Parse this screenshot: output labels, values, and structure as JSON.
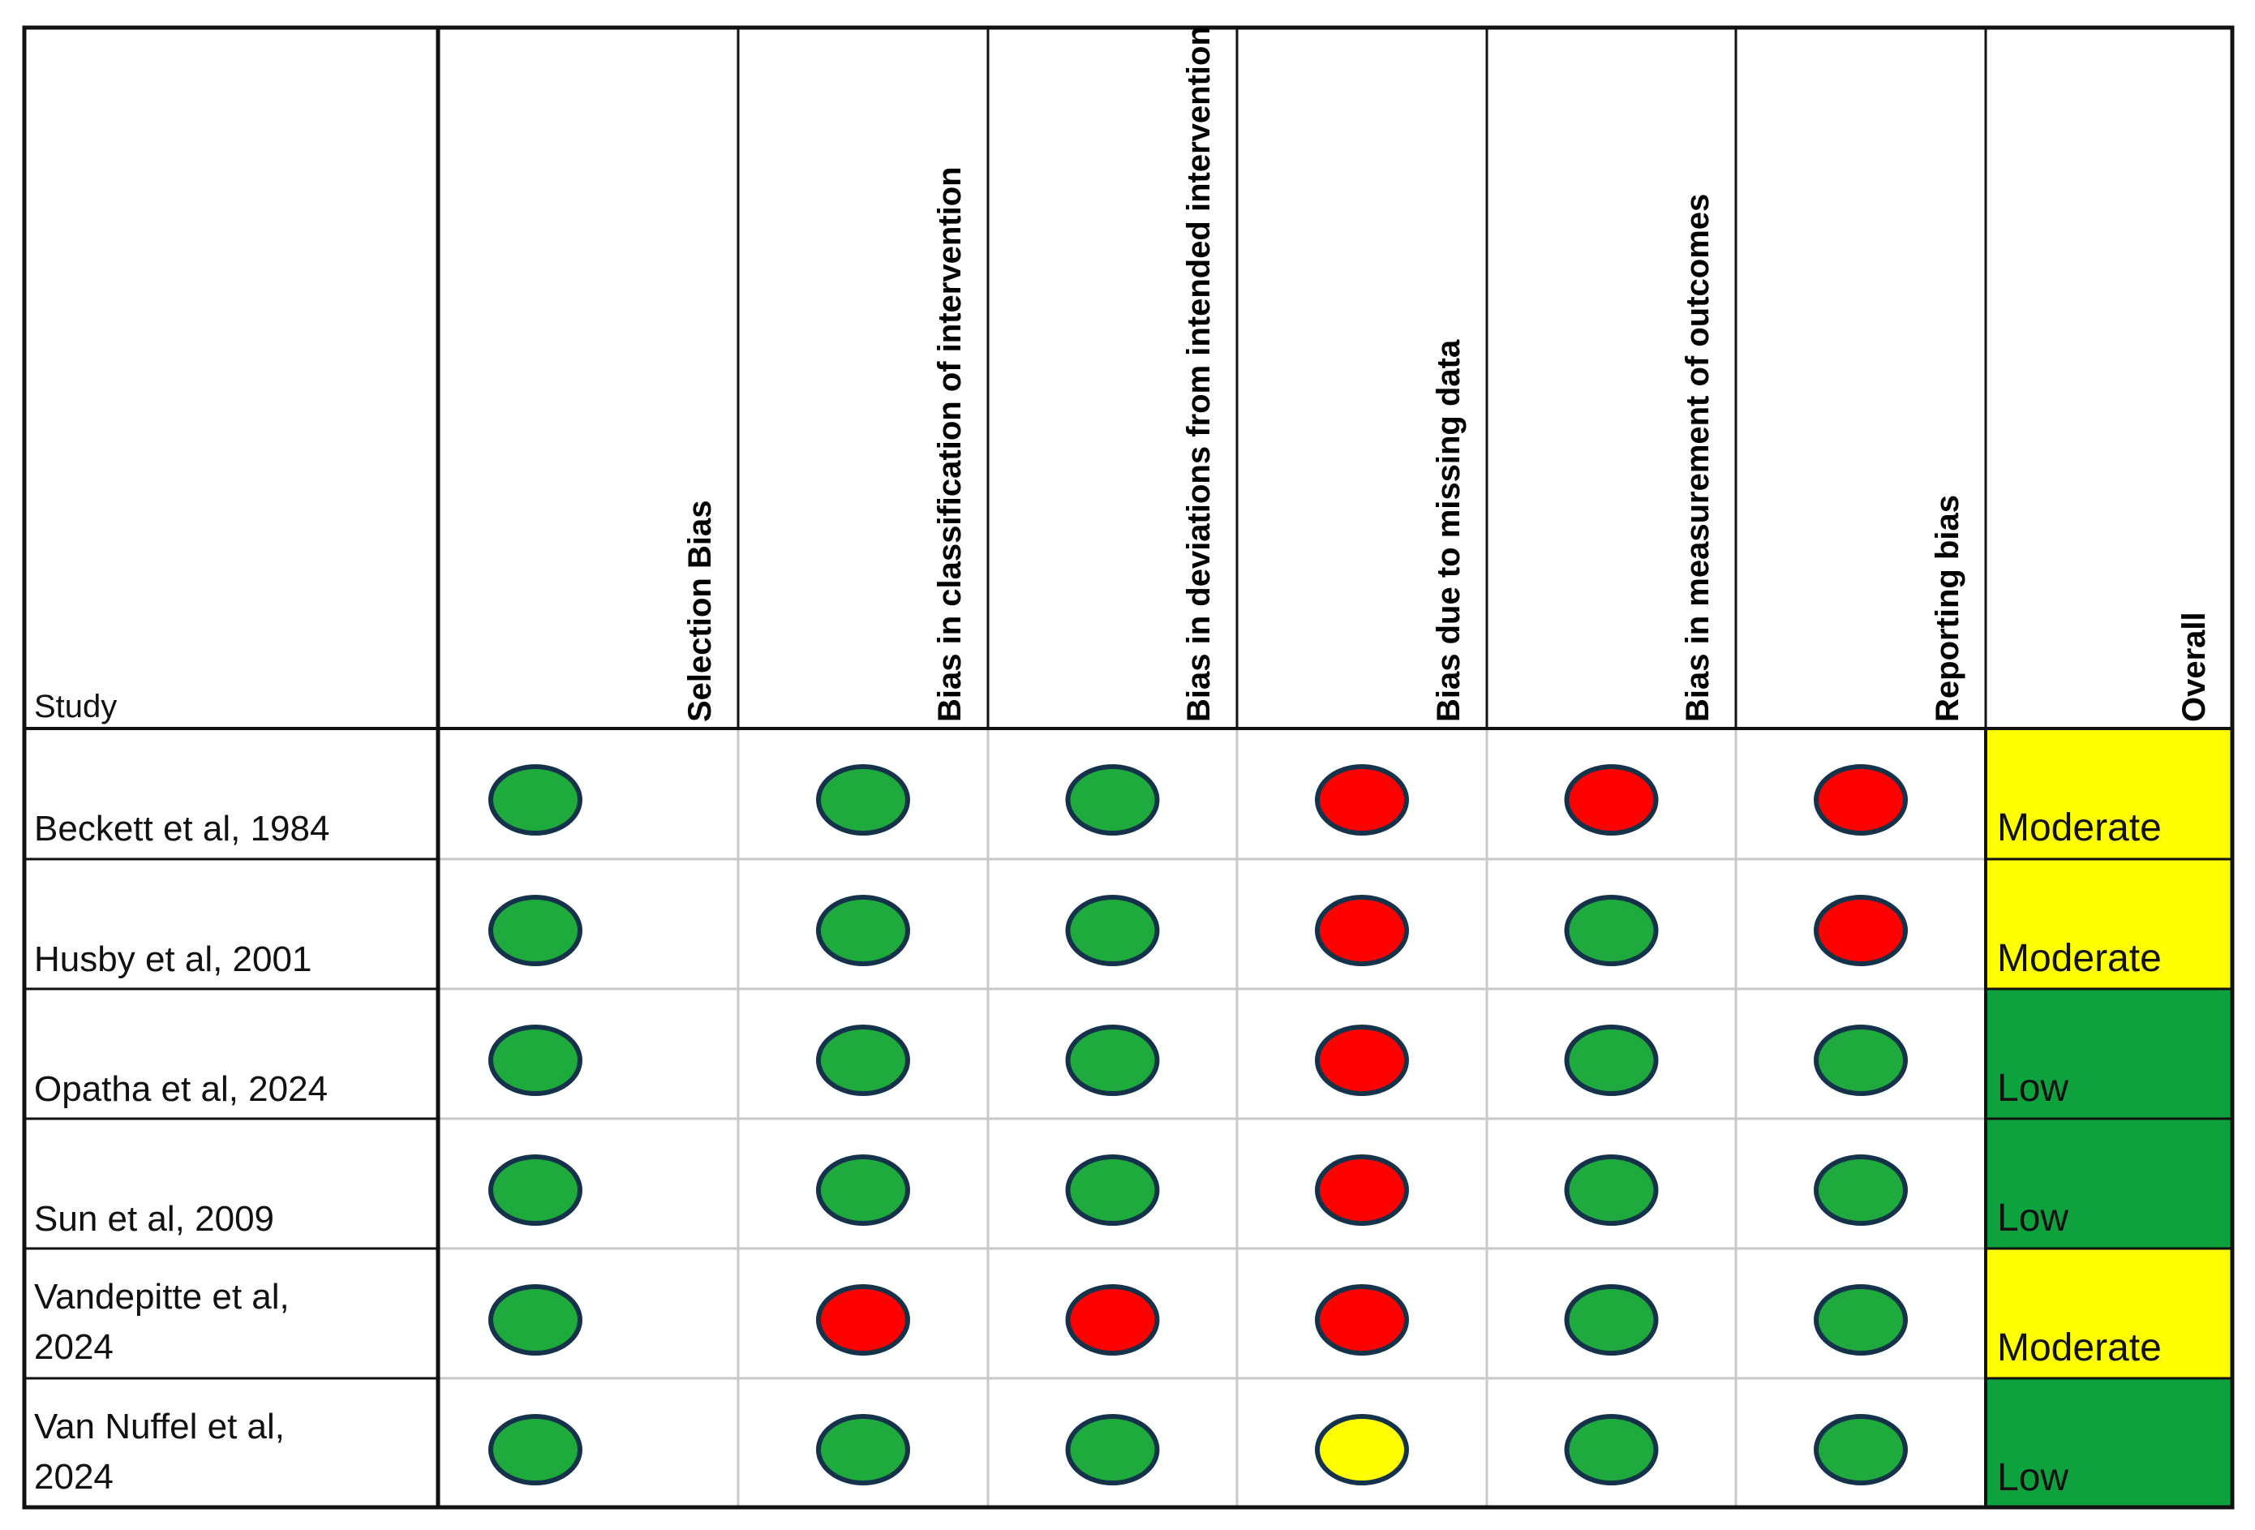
{
  "header": {
    "study_label": "Study",
    "columns": [
      "Selection Bias",
      "Bias in classification of intervention",
      "Bias in deviations from intended intervention",
      "Bias due to missing data",
      "Bias in measurement of outcomes",
      "Reporting bias",
      "Overall"
    ]
  },
  "colors": {
    "low": "#1faa3d",
    "moderate": "#ffff00",
    "high": "#ff0000",
    "overall_low": "#0ea23e",
    "overall_moderate": "#ffff00",
    "dot_outline": "#14324a"
  },
  "rows": [
    {
      "study_lines": [
        "Beckett et al, 1984"
      ],
      "ratings": [
        "low",
        "low",
        "low",
        "high",
        "high",
        "high"
      ],
      "overall": "Moderate"
    },
    {
      "study_lines": [
        "Husby et al, 2001"
      ],
      "ratings": [
        "low",
        "low",
        "low",
        "high",
        "low",
        "high"
      ],
      "overall": "Moderate"
    },
    {
      "study_lines": [
        "Opatha et al, 2024"
      ],
      "ratings": [
        "low",
        "low",
        "low",
        "high",
        "low",
        "low"
      ],
      "overall": "Low"
    },
    {
      "study_lines": [
        "Sun et al, 2009"
      ],
      "ratings": [
        "low",
        "low",
        "low",
        "high",
        "low",
        "low"
      ],
      "overall": "Low"
    },
    {
      "study_lines": [
        "Vandepitte et al,",
        "2024"
      ],
      "ratings": [
        "low",
        "high",
        "high",
        "high",
        "low",
        "low"
      ],
      "overall": "Moderate"
    },
    {
      "study_lines": [
        "Van Nuffel et al,",
        "2024"
      ],
      "ratings": [
        "low",
        "low",
        "low",
        "moderate",
        "low",
        "low"
      ],
      "overall": "Low"
    }
  ]
}
